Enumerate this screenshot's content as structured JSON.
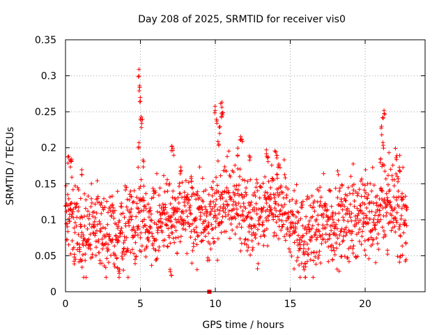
{
  "chart_data": {
    "type": "scatter",
    "title": "Day 208 of 2025, SRMTID for receiver vis0",
    "xlabel": "GPS time / hours",
    "ylabel": "SRMTID / TECUs",
    "xlim": [
      0,
      24
    ],
    "ylim": [
      0,
      0.35
    ],
    "x_ticks": [
      0,
      5,
      10,
      15,
      20
    ],
    "x_tick_labels": [
      "0",
      "5",
      "10",
      "15",
      "20"
    ],
    "y_ticks": [
      0,
      0.05,
      0.1,
      0.15,
      0.2,
      0.25,
      0.3,
      0.35
    ],
    "y_tick_labels": [
      "0",
      "0.05",
      "0.1",
      "0.15",
      "0.2",
      "0.25",
      "0.3",
      "0.35"
    ],
    "grid": true,
    "marker": "+",
    "color": "#ff0000",
    "time_range_hours": [
      0,
      22.8
    ],
    "baseline_profile": [
      [
        0.0,
        0.095
      ],
      [
        0.5,
        0.11
      ],
      [
        1.0,
        0.09
      ],
      [
        1.5,
        0.085
      ],
      [
        2.0,
        0.09
      ],
      [
        2.5,
        0.085
      ],
      [
        3.0,
        0.08
      ],
      [
        3.5,
        0.075
      ],
      [
        4.0,
        0.085
      ],
      [
        4.5,
        0.09
      ],
      [
        5.0,
        0.1
      ],
      [
        5.5,
        0.1
      ],
      [
        6.0,
        0.09
      ],
      [
        6.5,
        0.095
      ],
      [
        7.0,
        0.1
      ],
      [
        7.5,
        0.11
      ],
      [
        8.0,
        0.11
      ],
      [
        8.5,
        0.1
      ],
      [
        9.0,
        0.11
      ],
      [
        9.5,
        0.09
      ],
      [
        10.0,
        0.12
      ],
      [
        10.5,
        0.12
      ],
      [
        11.0,
        0.12
      ],
      [
        11.5,
        0.12
      ],
      [
        12.0,
        0.11
      ],
      [
        12.5,
        0.1
      ],
      [
        13.0,
        0.1
      ],
      [
        13.5,
        0.11
      ],
      [
        14.0,
        0.12
      ],
      [
        14.5,
        0.11
      ],
      [
        15.0,
        0.1
      ],
      [
        15.5,
        0.085
      ],
      [
        16.0,
        0.07
      ],
      [
        16.5,
        0.09
      ],
      [
        17.0,
        0.09
      ],
      [
        17.5,
        0.1
      ],
      [
        18.0,
        0.1
      ],
      [
        18.5,
        0.1
      ],
      [
        19.0,
        0.1
      ],
      [
        19.5,
        0.105
      ],
      [
        20.0,
        0.11
      ],
      [
        20.5,
        0.1
      ],
      [
        21.0,
        0.11
      ],
      [
        21.5,
        0.13
      ],
      [
        22.0,
        0.12
      ],
      [
        22.5,
        0.11
      ],
      [
        22.8,
        0.1
      ]
    ],
    "spread": 0.028,
    "peak_points": [
      [
        0.2,
        0.19
      ],
      [
        0.3,
        0.185
      ],
      [
        0.4,
        0.19
      ],
      [
        1.1,
        0.17
      ],
      [
        4.9,
        0.31
      ],
      [
        4.95,
        0.29
      ],
      [
        5.0,
        0.27
      ],
      [
        5.05,
        0.25
      ],
      [
        5.1,
        0.24
      ],
      [
        4.9,
        0.21
      ],
      [
        5.2,
        0.185
      ],
      [
        7.1,
        0.205
      ],
      [
        7.2,
        0.2
      ],
      [
        7.7,
        0.17
      ],
      [
        8.4,
        0.165
      ],
      [
        10.0,
        0.26
      ],
      [
        10.1,
        0.24
      ],
      [
        10.4,
        0.265
      ],
      [
        10.5,
        0.255
      ],
      [
        10.45,
        0.25
      ],
      [
        10.3,
        0.23
      ],
      [
        10.2,
        0.21
      ],
      [
        11.5,
        0.2
      ],
      [
        11.7,
        0.22
      ],
      [
        11.8,
        0.22
      ],
      [
        12.3,
        0.19
      ],
      [
        13.4,
        0.2
      ],
      [
        13.5,
        0.19
      ],
      [
        14.0,
        0.2
      ],
      [
        14.1,
        0.195
      ],
      [
        14.2,
        0.18
      ],
      [
        21.2,
        0.25
      ],
      [
        21.3,
        0.255
      ],
      [
        21.1,
        0.23
      ],
      [
        21.2,
        0.21
      ],
      [
        21.0,
        0.19
      ],
      [
        22.1,
        0.19
      ],
      [
        22.3,
        0.175
      ]
    ],
    "trough_points": [
      [
        3.5,
        0.03
      ],
      [
        3.6,
        0.025
      ],
      [
        7.0,
        0.025
      ],
      [
        7.05,
        0.022
      ],
      [
        15.9,
        0.03
      ],
      [
        16.0,
        0.032
      ],
      [
        1.0,
        0.04
      ],
      [
        0.6,
        0.035
      ],
      [
        17.8,
        0.04
      ],
      [
        18.4,
        0.045
      ],
      [
        20.0,
        0.05
      ],
      [
        22.3,
        0.04
      ],
      [
        22.7,
        0.038
      ],
      [
        21.5,
        0.05
      ]
    ],
    "zero_marker": [
      9.6,
      0.0
    ]
  }
}
